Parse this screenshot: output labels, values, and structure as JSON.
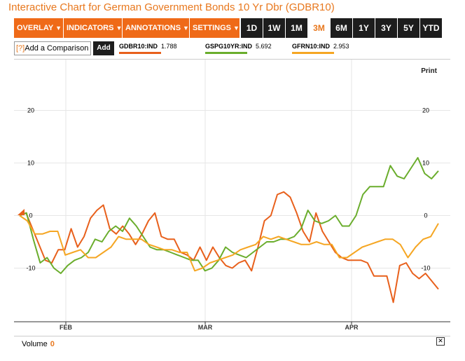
{
  "title": "Interactive Chart for German Government Bonds 10 Yr Dbr (GDBR10)",
  "toolbar": {
    "menus": [
      {
        "label": "OVERLAY"
      },
      {
        "label": "INDICATORS"
      },
      {
        "label": "ANNOTATIONS"
      },
      {
        "label": "SETTINGS"
      }
    ],
    "ranges": [
      "1D",
      "1W",
      "1M",
      "3M",
      "6M",
      "1Y",
      "3Y",
      "5Y",
      "YTD"
    ],
    "active_range": "3M"
  },
  "compare": {
    "prefix": "[?]",
    "label": "Add a Comparison",
    "add_label": "Add"
  },
  "legend": [
    {
      "symbol": "GDBR10:IND",
      "value": "1.788",
      "color": "#e8601c"
    },
    {
      "symbol": "GSPG10YR:IND",
      "value": "5.692",
      "color": "#6aad2c"
    },
    {
      "symbol": "GFRN10:IND",
      "value": "2.953",
      "color": "#f5a623"
    }
  ],
  "print_label": "Print",
  "volume": {
    "label": "Volume",
    "value": "0"
  },
  "chart_data": {
    "type": "line",
    "y_ticks": [
      "20",
      "10",
      "0",
      "-10"
    ],
    "y_ticks_right": [
      "20",
      "10",
      "0",
      "-10"
    ],
    "ylim": [
      -20,
      30
    ],
    "x_labels": [
      "FEB",
      "MAR",
      "APR"
    ],
    "series": [
      {
        "name": "GDBR10:IND",
        "color": "#e8601c",
        "values": [
          0,
          0.5,
          -2.5,
          -5.5,
          -8.5,
          -9,
          -6.5,
          -6.5,
          -2.5,
          -6,
          -4,
          -0.5,
          1,
          2,
          -2.5,
          -3.5,
          -2,
          -3.5,
          -5.5,
          -3.5,
          -1,
          0.5,
          -4,
          -4.5,
          -4.5,
          -7,
          -7.5,
          -8.5,
          -6,
          -8.5,
          -6,
          -8,
          -9.5,
          -10,
          -9,
          -8.5,
          -10.5,
          -6,
          -1,
          0,
          4,
          4.5,
          3.5,
          0.5,
          -3,
          -5,
          0.5,
          -3,
          -5,
          -7,
          -8,
          -8.5,
          -8.5,
          -8.5,
          -9,
          -11.5,
          -11.5,
          -11.5,
          -16.5,
          -9.5,
          -9,
          -11,
          -12,
          -11,
          -12.5,
          -14
        ]
      },
      {
        "name": "GSPG10YR:IND",
        "color": "#6aad2c",
        "values": [
          0,
          0.5,
          -4.5,
          -9,
          -8,
          -10,
          -11,
          -9.5,
          -8.5,
          -8,
          -7,
          -4.5,
          -5,
          -3,
          -2,
          -3,
          -0.5,
          -2,
          -4,
          -6,
          -6.5,
          -6.5,
          -7,
          -7.5,
          -8,
          -8.5,
          -8.5,
          -10.5,
          -10,
          -8.5,
          -6,
          -7,
          -7.5,
          -8,
          -7,
          -6,
          -5,
          -5,
          -4.5,
          -4.5,
          -4,
          -2.5,
          1,
          -1,
          -1.5,
          -1,
          0,
          -2,
          -2,
          0,
          4,
          5.5,
          5.5,
          5.5,
          9.5,
          7.5,
          7,
          9,
          11,
          8,
          7,
          8.5
        ]
      },
      {
        "name": "GFRN10:IND",
        "color": "#f5a623",
        "values": [
          0,
          -1,
          -3.5,
          -3.5,
          -3,
          -3,
          -7.5,
          -7,
          -6.5,
          -8,
          -8,
          -7,
          -6,
          -4,
          -4.5,
          -4.5,
          -4.5,
          -5.5,
          -6,
          -6.5,
          -6.5,
          -7,
          -7,
          -10.5,
          -10,
          -9,
          -8.5,
          -8,
          -7.5,
          -6.5,
          -6,
          -5.5,
          -4,
          -4.5,
          -4,
          -4.5,
          -5,
          -5.5,
          -5.5,
          -5,
          -5.5,
          -5.5,
          -8,
          -8,
          -7,
          -6,
          -5.5,
          -5,
          -4.5,
          -4.5,
          -5.5,
          -8,
          -6,
          -4.5,
          -4,
          -1.5
        ]
      }
    ]
  }
}
